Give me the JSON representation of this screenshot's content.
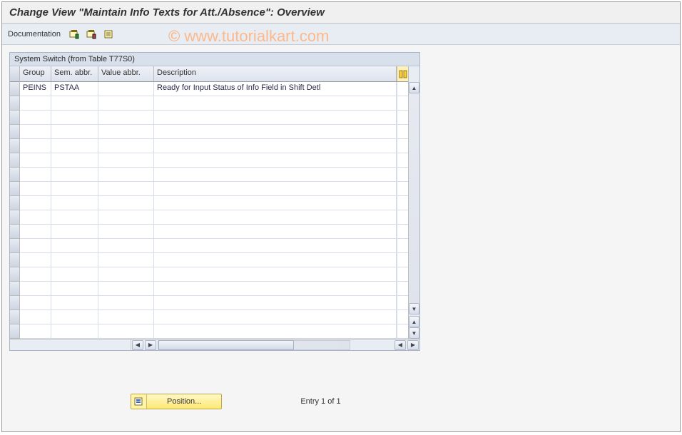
{
  "page_title": "Change View \"Maintain Info Texts for Att./Absence\": Overview",
  "toolbar": {
    "documentation_label": "Documentation",
    "icon1_name": "print-preview-icon",
    "icon2_name": "print-icon",
    "icon3_name": "export-icon"
  },
  "watermark": {
    "text": "www.tutorialkart.com",
    "copyright_glyph": "©",
    "color": "#f8a879"
  },
  "panel": {
    "title": "System Switch (from Table T77S0)",
    "columns": {
      "group": "Group",
      "sem_abbr": "Sem. abbr.",
      "value_abbr": "Value abbr.",
      "description": "Description"
    },
    "rows": [
      {
        "group": "PEINS",
        "sem_abbr": "PSTAA",
        "value_abbr": "",
        "description": "Ready for Input Status of Info Field in Shift Detl"
      }
    ],
    "empty_row_count": 17
  },
  "footer": {
    "position_button_label": "Position...",
    "entry_text": "Entry 1 of 1"
  },
  "colors": {
    "panel_border": "#a9b6c9",
    "panel_title_bg": "#d8e0ec",
    "header_grad_top": "#eef1f6",
    "header_grad_bot": "#dde3ee",
    "row_border": "#d7dde8",
    "config_col_bg": "#fff2b8",
    "toolbar_bg": "#e8edf4",
    "pos_button_bg_top": "#fff8c8",
    "pos_button_bg_bot": "#ffe873",
    "pos_button_border": "#b8a946"
  }
}
